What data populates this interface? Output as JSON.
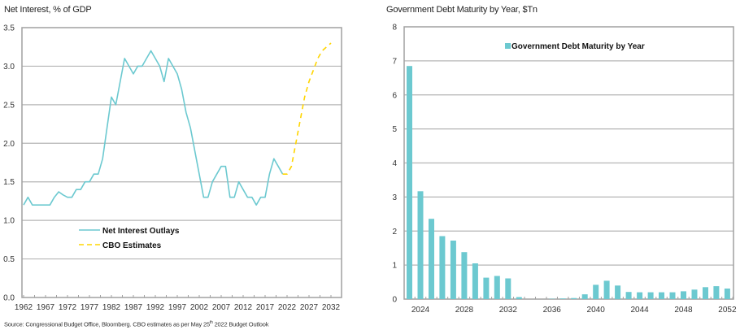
{
  "chart_data": [
    {
      "type": "line",
      "title": "Net Interest, % of GDP",
      "xlabel": "",
      "ylabel": "",
      "xlim": [
        1962,
        2034
      ],
      "ylim": [
        0,
        3.5
      ],
      "yticks": [
        "0.0",
        "0.5",
        "1.0",
        "1.5",
        "2.0",
        "2.5",
        "3.0",
        "3.5"
      ],
      "yticks_values": [
        0,
        0.5,
        1.0,
        1.5,
        2.0,
        2.5,
        3.0,
        3.5
      ],
      "xticks": [
        "1962",
        "1967",
        "1972",
        "1977",
        "1982",
        "1987",
        "1992",
        "1997",
        "2002",
        "2007",
        "2012",
        "2017",
        "2022",
        "2027",
        "2032"
      ],
      "grid": true,
      "legend_position": "center-left",
      "series": [
        {
          "name": "Net Interest Outlays",
          "color": "#6cc9d0",
          "style": "solid",
          "x": [
            1962,
            1963,
            1964,
            1965,
            1966,
            1967,
            1968,
            1969,
            1970,
            1971,
            1972,
            1973,
            1974,
            1975,
            1976,
            1977,
            1978,
            1979,
            1980,
            1981,
            1982,
            1983,
            1984,
            1985,
            1986,
            1987,
            1988,
            1989,
            1990,
            1991,
            1992,
            1993,
            1994,
            1995,
            1996,
            1997,
            1998,
            1999,
            2000,
            2001,
            2002,
            2003,
            2004,
            2005,
            2006,
            2007,
            2008,
            2009,
            2010,
            2011,
            2012,
            2013,
            2014,
            2015,
            2016,
            2017,
            2018,
            2019,
            2020,
            2021
          ],
          "y": [
            1.2,
            1.3,
            1.2,
            1.2,
            1.2,
            1.2,
            1.2,
            1.3,
            1.37,
            1.33,
            1.3,
            1.3,
            1.4,
            1.4,
            1.5,
            1.5,
            1.6,
            1.6,
            1.8,
            2.2,
            2.6,
            2.5,
            2.8,
            3.1,
            3.0,
            2.9,
            3.0,
            3.0,
            3.1,
            3.2,
            3.1,
            3.0,
            2.8,
            3.1,
            3.0,
            2.9,
            2.7,
            2.4,
            2.2,
            1.9,
            1.6,
            1.3,
            1.3,
            1.5,
            1.6,
            1.7,
            1.7,
            1.3,
            1.3,
            1.5,
            1.4,
            1.3,
            1.3,
            1.2,
            1.3,
            1.3,
            1.6,
            1.8,
            1.7,
            1.6
          ]
        },
        {
          "name": "CBO Estimates",
          "color": "#ffd500",
          "style": "dashed",
          "x": [
            2021,
            2022,
            2023,
            2024,
            2025,
            2026,
            2027,
            2028,
            2029,
            2030,
            2031,
            2032
          ],
          "y": [
            1.6,
            1.6,
            1.7,
            2.0,
            2.3,
            2.6,
            2.8,
            2.95,
            3.1,
            3.2,
            3.25,
            3.3
          ]
        }
      ]
    },
    {
      "type": "bar",
      "title": "Government Debt Maturity by Year, $Tn",
      "xlabel": "",
      "ylabel": "",
      "ylim": [
        0,
        8
      ],
      "yticks": [
        "0",
        "1",
        "2",
        "3",
        "4",
        "5",
        "6",
        "7",
        "8"
      ],
      "yticks_values": [
        0,
        1,
        2,
        3,
        4,
        5,
        6,
        7,
        8
      ],
      "xticks": [
        "2024",
        "2028",
        "2032",
        "2036",
        "2040",
        "2044",
        "2048",
        "2052"
      ],
      "grid": true,
      "legend_position": "top-center",
      "categories": [
        2023,
        2024,
        2025,
        2026,
        2027,
        2028,
        2029,
        2030,
        2031,
        2032,
        2033,
        2034,
        2035,
        2036,
        2037,
        2038,
        2039,
        2040,
        2041,
        2042,
        2043,
        2044,
        2045,
        2046,
        2047,
        2048,
        2049,
        2050,
        2051,
        2052
      ],
      "series": [
        {
          "name": "Government Debt Maturity by Year",
          "color": "#6cc9d0",
          "values": [
            6.85,
            3.17,
            2.36,
            1.85,
            1.72,
            1.38,
            1.05,
            0.63,
            0.68,
            0.61,
            0.06,
            0.0,
            0.0,
            0.01,
            0.02,
            0.03,
            0.14,
            0.42,
            0.54,
            0.4,
            0.21,
            0.2,
            0.2,
            0.2,
            0.2,
            0.23,
            0.28,
            0.35,
            0.38,
            0.31
          ]
        }
      ]
    }
  ],
  "source": {
    "text_before": "Source: Congressional Budget Office, Bloomberg. CBO estimates as per May 25",
    "superscript": "th",
    "text_after": " 2022 Budget Outlook"
  },
  "colors": {
    "grid": "#b5b5b5",
    "axis": "#a0a0a0",
    "teal": "#6cc9d0",
    "yellow": "#ffd500"
  }
}
